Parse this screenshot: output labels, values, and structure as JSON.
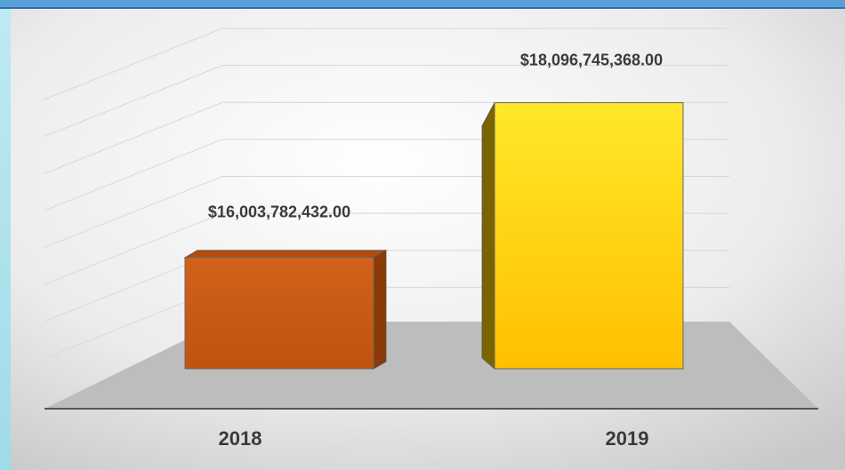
{
  "chart_data": {
    "type": "bar3d",
    "categories": [
      "2018",
      "2019"
    ],
    "values": [
      16003782432,
      18096745368
    ],
    "value_labels": [
      "$16,003,782,432.00",
      "$18,096,745,368.00"
    ],
    "colors": [
      "#c55a11",
      "#ffc000"
    ],
    "ylim": [
      14500000000,
      18500000000
    ],
    "yticks": [
      14500000000,
      15000000000,
      15500000000,
      16000000000,
      16500000000,
      17000000000,
      17500000000,
      18000000000,
      18500000000
    ],
    "grid": true
  }
}
